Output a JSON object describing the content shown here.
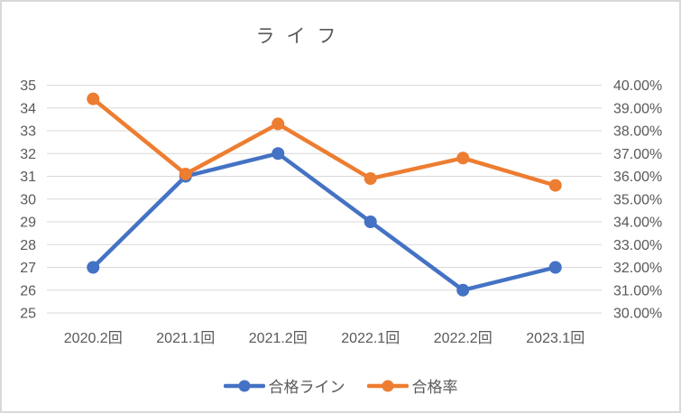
{
  "window": {
    "background": "#FFFFFF",
    "border_color": "#D9D9D9"
  },
  "chart_data": {
    "type": "line",
    "title": "ライフ",
    "categories": [
      "2020.2回",
      "2021.1回",
      "2021.2回",
      "2022.1回",
      "2022.2回",
      "2023.1回"
    ],
    "series": [
      {
        "name": "合格ライン",
        "axis": "left",
        "color": "#4472C4",
        "marker": "circle",
        "values": [
          27,
          31,
          32,
          29,
          26,
          27
        ]
      },
      {
        "name": "合格率",
        "axis": "right",
        "color": "#ED7D31",
        "marker": "circle",
        "unit": "%",
        "values": [
          39.4,
          36.1,
          38.3,
          35.9,
          36.8,
          35.6
        ]
      }
    ],
    "left_axis": {
      "min": 25,
      "max": 35,
      "step": 1,
      "ticks": [
        "35",
        "34",
        "33",
        "32",
        "31",
        "30",
        "29",
        "28",
        "27",
        "26",
        "25"
      ]
    },
    "right_axis": {
      "min": 30,
      "max": 40,
      "step": 1,
      "format": "0.00%",
      "ticks": [
        "40.00%",
        "39.00%",
        "38.00%",
        "37.00%",
        "36.00%",
        "35.00%",
        "34.00%",
        "33.00%",
        "32.00%",
        "31.00%",
        "30.00%"
      ]
    },
    "grid": true,
    "legend_position": "bottom",
    "colors": {
      "grid": "#D9D9D9",
      "text": "#595959",
      "title": "#595959"
    }
  }
}
